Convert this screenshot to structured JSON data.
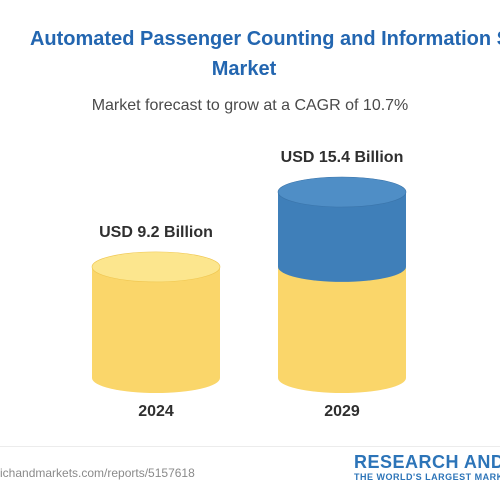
{
  "header": {
    "title_line1": "Automated Passenger Counting and Information S",
    "title_line2": "Market",
    "subtitle": "Market forecast to grow at a CAGR of 10.7%"
  },
  "chart_data": {
    "type": "bar",
    "categories": [
      "2024",
      "2029"
    ],
    "values": [
      9.2,
      15.4
    ],
    "data_labels": [
      "USD 9.2 Billion",
      "USD 15.4 Billion"
    ],
    "unit": "USD Billion",
    "ylim": [
      0,
      15.4
    ],
    "colors": {
      "base": "#fadb70",
      "growth": "#3f7fb9"
    }
  },
  "footer": {
    "url": "ichandmarkets.com/reports/5157618",
    "brand": "RESEARCH AND",
    "tagline": "THE WORLD'S LARGEST MARK"
  }
}
